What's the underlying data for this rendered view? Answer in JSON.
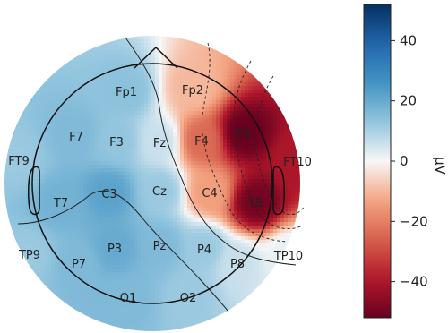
{
  "chart_data": {
    "type": "heatmap",
    "colormap": "RdBu_r",
    "unit": "µV",
    "vmin": -52,
    "vmax": 52,
    "colorbar_ticks": [
      40,
      20,
      0,
      -20,
      -40
    ],
    "colorbar_tick_labels": [
      "40",
      "20",
      "0",
      "−20",
      "−40"
    ],
    "electrodes": [
      {
        "name": "Fp1",
        "value": 14
      },
      {
        "name": "Fp2",
        "value": -10
      },
      {
        "name": "F7",
        "value": 16
      },
      {
        "name": "F3",
        "value": 13
      },
      {
        "name": "Fz",
        "value": 6
      },
      {
        "name": "F4",
        "value": -24
      },
      {
        "name": "F8",
        "value": -52
      },
      {
        "name": "FT9",
        "value": 12
      },
      {
        "name": "FT10",
        "value": -40
      },
      {
        "name": "T7",
        "value": 18
      },
      {
        "name": "C3",
        "value": 22
      },
      {
        "name": "Cz",
        "value": 12
      },
      {
        "name": "C4",
        "value": -14
      },
      {
        "name": "T8",
        "value": -50
      },
      {
        "name": "TP9",
        "value": 12
      },
      {
        "name": "TP10",
        "value": 2
      },
      {
        "name": "P7",
        "value": 16
      },
      {
        "name": "P3",
        "value": 20
      },
      {
        "name": "Pz",
        "value": 16
      },
      {
        "name": "P4",
        "value": 12
      },
      {
        "name": "P8",
        "value": 6
      },
      {
        "name": "O1",
        "value": 16
      },
      {
        "name": "O2",
        "value": 12
      }
    ]
  }
}
